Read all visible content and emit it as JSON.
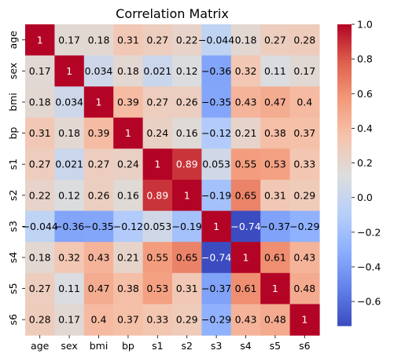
{
  "chart_data": {
    "type": "heatmap",
    "title": "Correlation Matrix",
    "labels": [
      "age",
      "sex",
      "bmi",
      "bp",
      "s1",
      "s2",
      "s3",
      "s4",
      "s5",
      "s6"
    ],
    "matrix": [
      [
        1,
        0.17,
        0.18,
        0.31,
        0.27,
        0.22,
        -0.044,
        0.18,
        0.27,
        0.28
      ],
      [
        0.17,
        1,
        0.034,
        0.18,
        0.021,
        0.12,
        -0.36,
        0.32,
        0.11,
        0.17
      ],
      [
        0.18,
        0.034,
        1,
        0.39,
        0.27,
        0.26,
        -0.35,
        0.43,
        0.47,
        0.4
      ],
      [
        0.31,
        0.18,
        0.39,
        1,
        0.24,
        0.16,
        -0.12,
        0.21,
        0.38,
        0.37
      ],
      [
        0.27,
        0.021,
        0.27,
        0.24,
        1,
        0.89,
        0.053,
        0.55,
        0.53,
        0.33
      ],
      [
        0.22,
        0.12,
        0.26,
        0.16,
        0.89,
        1,
        -0.19,
        0.65,
        0.31,
        0.29
      ],
      [
        -0.044,
        -0.36,
        -0.35,
        -0.12,
        0.053,
        -0.19,
        1,
        -0.74,
        -0.37,
        -0.29
      ],
      [
        0.18,
        0.32,
        0.43,
        0.21,
        0.55,
        0.65,
        -0.74,
        1,
        0.61,
        0.43
      ],
      [
        0.27,
        0.11,
        0.47,
        0.38,
        0.53,
        0.31,
        -0.37,
        0.61,
        1,
        0.48
      ],
      [
        0.28,
        0.17,
        0.4,
        0.37,
        0.33,
        0.29,
        -0.29,
        0.43,
        0.48,
        1
      ]
    ],
    "colormap": "coolwarm",
    "vmin": -0.74,
    "vmax": 1,
    "annotated": true,
    "colorbar": {
      "ticks": [
        1.0,
        0.8,
        0.6,
        0.4,
        0.2,
        0.0,
        -0.2,
        -0.4,
        -0.6
      ],
      "tick_labels": [
        "1.0",
        "0.8",
        "0.6",
        "0.4",
        "0.2",
        "0.0",
        "−0.2",
        "−0.4",
        "−0.6"
      ]
    }
  }
}
